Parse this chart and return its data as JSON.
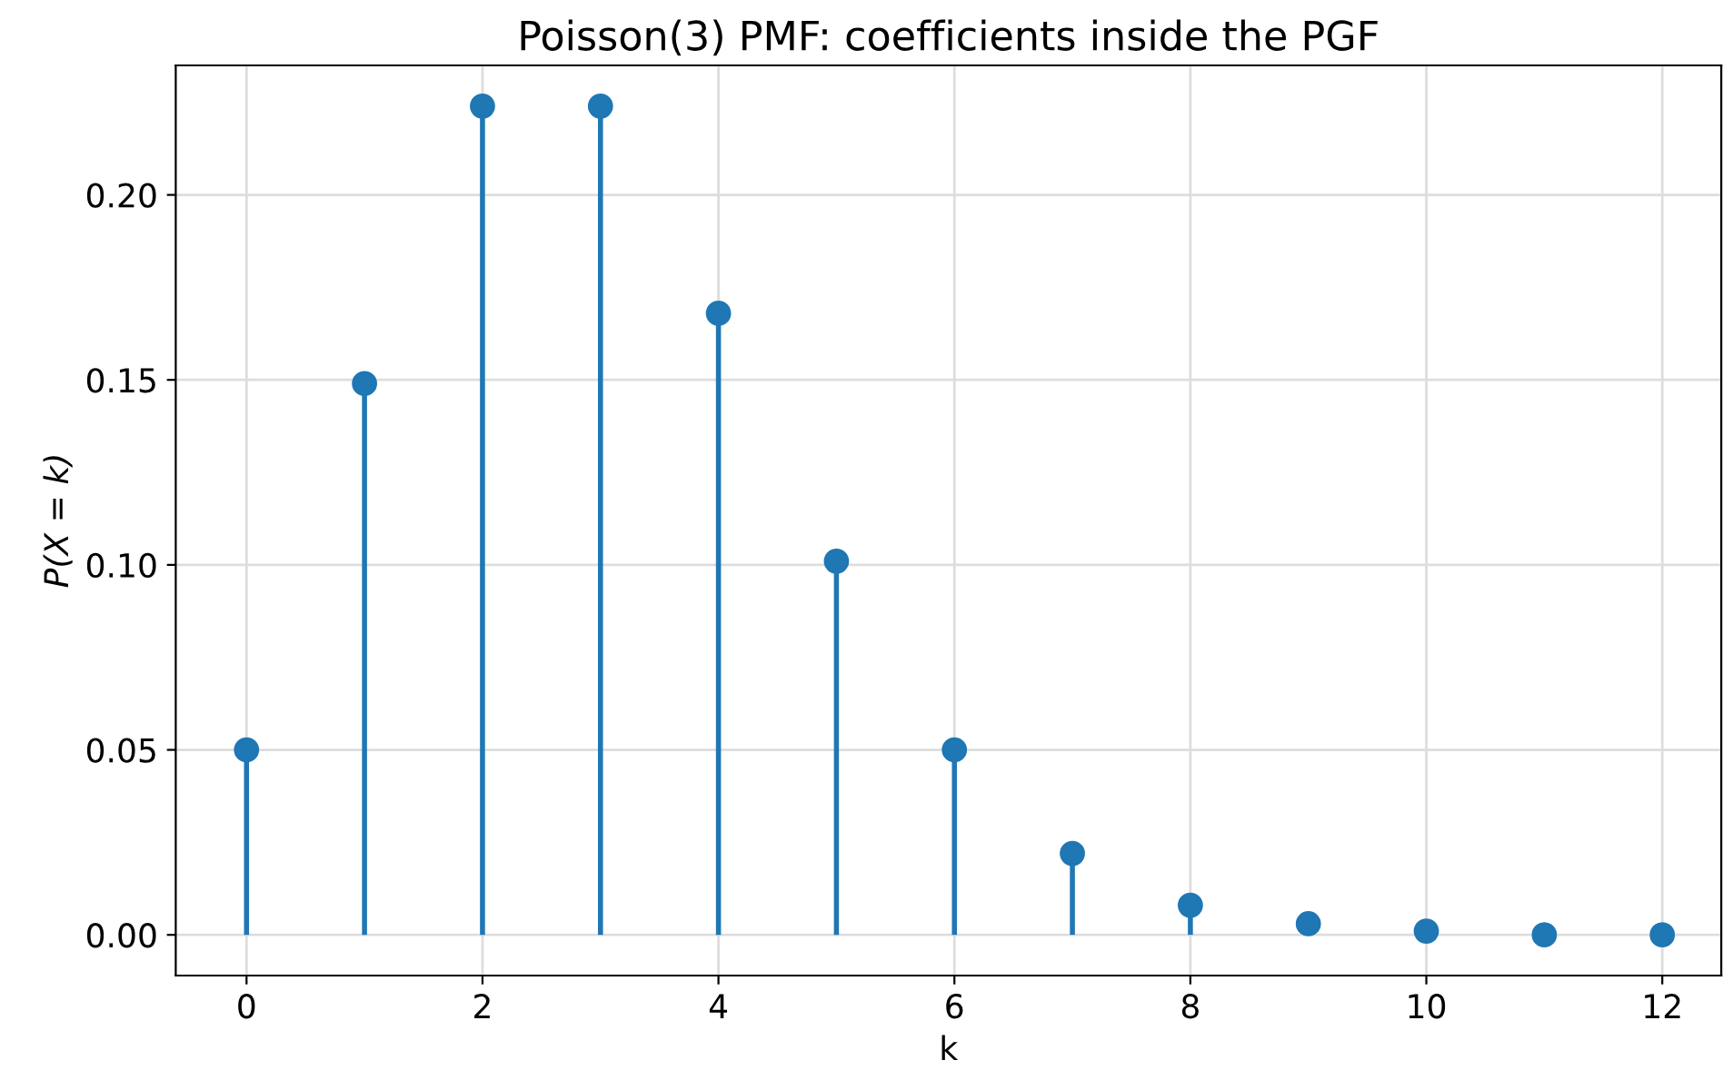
{
  "chart_data": {
    "type": "lollipop",
    "title": "Poisson(3) PMF: coefficients inside the PGF",
    "xlabel": "k",
    "ylabel": "P(X = k)",
    "x": [
      0,
      1,
      2,
      3,
      4,
      5,
      6,
      7,
      8,
      9,
      10,
      11,
      12
    ],
    "series": [
      {
        "color": "#1f77b4",
        "values": [
          0.05,
          0.149,
          0.224,
          0.224,
          0.168,
          0.101,
          0.05,
          0.022,
          0.008,
          0.003,
          0.001,
          0.0,
          0.0
        ]
      }
    ],
    "xlim": [
      -0.6,
      12.5
    ],
    "ylim": [
      -0.011,
      0.235
    ],
    "xticks": [
      0,
      2,
      4,
      6,
      8,
      10,
      12
    ],
    "yticks": [
      {
        "value": 0,
        "label": "0.00"
      },
      {
        "value": 0.05,
        "label": "0.05"
      },
      {
        "value": 0.1,
        "label": "0.10"
      },
      {
        "value": 0.15,
        "label": "0.15"
      },
      {
        "value": 0.2,
        "label": "0.20"
      }
    ],
    "grid": true,
    "marker": "circle"
  }
}
